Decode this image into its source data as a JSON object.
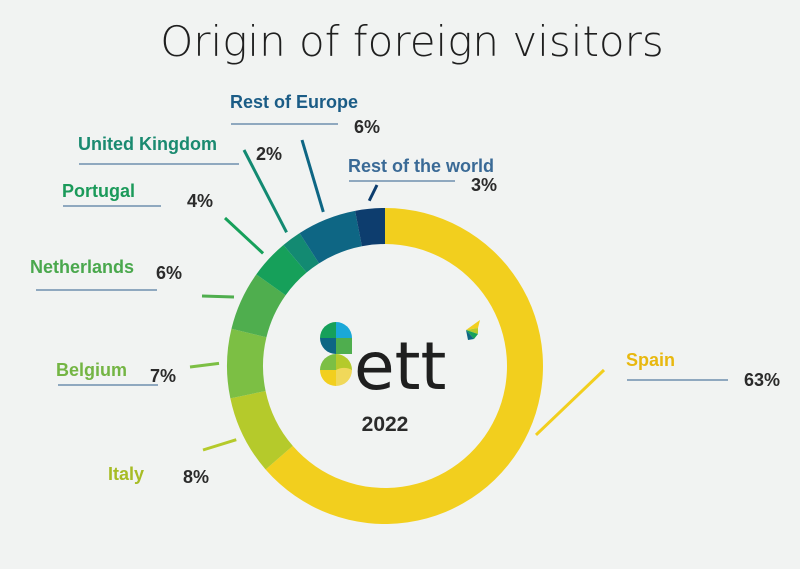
{
  "title": "Origin of foreign visitors",
  "center": {
    "brand": "ett",
    "year": "2022"
  },
  "chart_data": {
    "type": "donut",
    "title": "Origin of foreign visitors",
    "series": [
      {
        "name": "Spain",
        "label": "Spain",
        "value": 63,
        "value_label": "63%",
        "color": "#f2cf1e"
      },
      {
        "name": "Italy",
        "label": "Italy",
        "value": 8,
        "value_label": "8%",
        "color": "#b5ca2b"
      },
      {
        "name": "Belgium",
        "label": "Belgium",
        "value": 7,
        "value_label": "7%",
        "color": "#7cbf44"
      },
      {
        "name": "Netherlands",
        "label": "Netherlands",
        "value": 6,
        "value_label": "6%",
        "color": "#4fae4e"
      },
      {
        "name": "Portugal",
        "label": "Portugal",
        "value": 4,
        "value_label": "4%",
        "color": "#16a05a"
      },
      {
        "name": "United Kingdom",
        "label": "United Kingdom",
        "value": 2,
        "value_label": "2%",
        "color": "#138a72"
      },
      {
        "name": "Rest of Europe",
        "label": "Rest of Europe",
        "value": 6,
        "value_label": "6%",
        "color": "#0e6684"
      },
      {
        "name": "Rest of the world",
        "label": "Rest of the world",
        "value": 3,
        "value_label": "3%",
        "color": "#0d3d6e"
      }
    ],
    "label_colors": {
      "Spain": "#e8b80f",
      "Italy": "#a7bc25",
      "Belgium": "#74b544",
      "Netherlands": "#4aa84d",
      "Portugal": "#1b9a5a",
      "United Kingdom": "#1a8a70",
      "Rest of Europe": "#1b5c86",
      "Rest of the world": "#3a6a96"
    }
  }
}
